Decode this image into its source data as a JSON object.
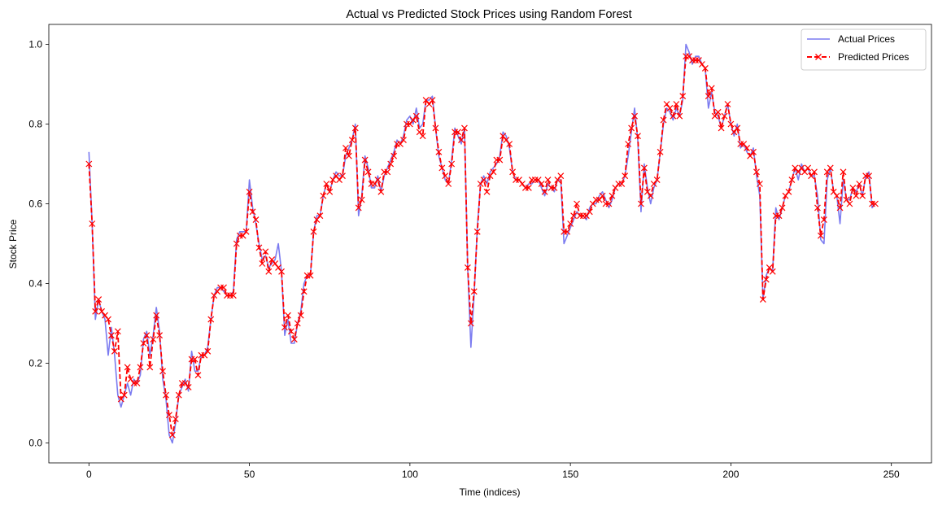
{
  "chart_data": {
    "type": "line",
    "title": "Actual vs Predicted Stock Prices using Random Forest",
    "xlabel": "Time (indices)",
    "ylabel": "Stock Price",
    "xlim": [
      -12.5,
      262.5
    ],
    "ylim": [
      -0.05,
      1.05
    ],
    "xticks": [
      0,
      50,
      100,
      150,
      200,
      250
    ],
    "yticks": [
      0.0,
      0.2,
      0.4,
      0.6,
      0.8,
      1.0
    ],
    "grid": false,
    "legend_position": "top-right",
    "series": [
      {
        "name": "Actual Prices",
        "color": "#7b7bf0",
        "style": "solid",
        "marker": "none",
        "values": [
          0.73,
          0.55,
          0.31,
          0.36,
          0.33,
          0.31,
          0.22,
          0.29,
          0.22,
          0.12,
          0.09,
          0.12,
          0.15,
          0.12,
          0.16,
          0.15,
          0.17,
          0.26,
          0.28,
          0.22,
          0.27,
          0.34,
          0.28,
          0.16,
          0.11,
          0.02,
          0.0,
          0.05,
          0.12,
          0.14,
          0.16,
          0.13,
          0.23,
          0.18,
          0.18,
          0.22,
          0.22,
          0.24,
          0.31,
          0.37,
          0.39,
          0.39,
          0.38,
          0.37,
          0.37,
          0.38,
          0.51,
          0.53,
          0.53,
          0.53,
          0.66,
          0.59,
          0.55,
          0.5,
          0.46,
          0.47,
          0.44,
          0.45,
          0.46,
          0.5,
          0.43,
          0.27,
          0.31,
          0.25,
          0.25,
          0.3,
          0.33,
          0.4,
          0.42,
          0.42,
          0.53,
          0.57,
          0.57,
          0.62,
          0.65,
          0.63,
          0.66,
          0.68,
          0.67,
          0.67,
          0.72,
          0.74,
          0.76,
          0.8,
          0.57,
          0.62,
          0.72,
          0.69,
          0.64,
          0.64,
          0.67,
          0.63,
          0.67,
          0.69,
          0.71,
          0.73,
          0.76,
          0.75,
          0.77,
          0.81,
          0.82,
          0.8,
          0.84,
          0.79,
          0.8,
          0.86,
          0.86,
          0.87,
          0.79,
          0.72,
          0.69,
          0.66,
          0.65,
          0.71,
          0.79,
          0.77,
          0.75,
          0.79,
          0.44,
          0.24,
          0.37,
          0.54,
          0.65,
          0.67,
          0.65,
          0.68,
          0.69,
          0.7,
          0.72,
          0.78,
          0.77,
          0.74,
          0.68,
          0.66,
          0.66,
          0.65,
          0.64,
          0.65,
          0.65,
          0.66,
          0.66,
          0.64,
          0.62,
          0.65,
          0.64,
          0.63,
          0.66,
          0.66,
          0.5,
          0.52,
          0.54,
          0.56,
          0.58,
          0.57,
          0.57,
          0.56,
          0.59,
          0.6,
          0.6,
          0.62,
          0.63,
          0.61,
          0.59,
          0.61,
          0.64,
          0.65,
          0.65,
          0.67,
          0.72,
          0.78,
          0.84,
          0.76,
          0.58,
          0.7,
          0.64,
          0.6,
          0.64,
          0.66,
          0.73,
          0.8,
          0.84,
          0.83,
          0.81,
          0.84,
          0.82,
          0.86,
          1.0,
          0.98,
          0.95,
          0.97,
          0.97,
          0.95,
          0.94,
          0.84,
          0.88,
          0.83,
          0.82,
          0.79,
          0.82,
          0.85,
          0.8,
          0.77,
          0.8,
          0.74,
          0.75,
          0.73,
          0.72,
          0.74,
          0.67,
          0.62,
          0.36,
          0.42,
          0.44,
          0.43,
          0.59,
          0.56,
          0.59,
          0.62,
          0.63,
          0.66,
          0.69,
          0.66,
          0.7,
          0.68,
          0.69,
          0.67,
          0.67,
          0.62,
          0.51,
          0.5,
          0.66,
          0.69,
          0.63,
          0.62,
          0.55,
          0.66,
          0.61,
          0.61,
          0.64,
          0.63,
          0.65,
          0.62,
          0.67,
          0.68,
          0.59,
          0.6
        ]
      },
      {
        "name": "Predicted Prices",
        "color": "#ff0000",
        "style": "dashed",
        "marker": "x",
        "values": [
          0.7,
          0.55,
          0.33,
          0.36,
          0.33,
          0.32,
          0.31,
          0.27,
          0.23,
          0.28,
          0.11,
          0.12,
          0.19,
          0.16,
          0.15,
          0.15,
          0.19,
          0.25,
          0.27,
          0.19,
          0.26,
          0.32,
          0.27,
          0.18,
          0.12,
          0.07,
          0.02,
          0.06,
          0.12,
          0.15,
          0.15,
          0.14,
          0.21,
          0.21,
          0.17,
          0.22,
          0.22,
          0.23,
          0.31,
          0.37,
          0.38,
          0.39,
          0.39,
          0.37,
          0.37,
          0.37,
          0.5,
          0.52,
          0.52,
          0.53,
          0.63,
          0.58,
          0.56,
          0.49,
          0.45,
          0.48,
          0.43,
          0.46,
          0.45,
          0.44,
          0.43,
          0.29,
          0.32,
          0.28,
          0.26,
          0.3,
          0.32,
          0.38,
          0.42,
          0.42,
          0.53,
          0.56,
          0.57,
          0.62,
          0.65,
          0.63,
          0.66,
          0.67,
          0.66,
          0.67,
          0.74,
          0.72,
          0.76,
          0.79,
          0.59,
          0.61,
          0.71,
          0.68,
          0.65,
          0.65,
          0.66,
          0.63,
          0.68,
          0.68,
          0.7,
          0.72,
          0.75,
          0.75,
          0.76,
          0.8,
          0.8,
          0.81,
          0.82,
          0.78,
          0.77,
          0.86,
          0.85,
          0.86,
          0.79,
          0.73,
          0.69,
          0.67,
          0.65,
          0.7,
          0.78,
          0.78,
          0.76,
          0.79,
          0.44,
          0.3,
          0.38,
          0.53,
          0.65,
          0.66,
          0.63,
          0.67,
          0.68,
          0.71,
          0.71,
          0.77,
          0.76,
          0.75,
          0.68,
          0.66,
          0.66,
          0.65,
          0.64,
          0.64,
          0.66,
          0.66,
          0.66,
          0.65,
          0.63,
          0.66,
          0.64,
          0.64,
          0.66,
          0.67,
          0.53,
          0.53,
          0.55,
          0.57,
          0.6,
          0.57,
          0.57,
          0.57,
          0.58,
          0.6,
          0.61,
          0.61,
          0.62,
          0.6,
          0.6,
          0.62,
          0.64,
          0.65,
          0.65,
          0.67,
          0.75,
          0.79,
          0.82,
          0.77,
          0.6,
          0.69,
          0.63,
          0.62,
          0.65,
          0.66,
          0.73,
          0.81,
          0.85,
          0.84,
          0.82,
          0.85,
          0.82,
          0.87,
          0.97,
          0.97,
          0.96,
          0.96,
          0.96,
          0.95,
          0.94,
          0.87,
          0.89,
          0.82,
          0.83,
          0.79,
          0.82,
          0.85,
          0.8,
          0.78,
          0.79,
          0.75,
          0.75,
          0.74,
          0.72,
          0.73,
          0.68,
          0.65,
          0.36,
          0.41,
          0.44,
          0.43,
          0.57,
          0.57,
          0.59,
          0.62,
          0.63,
          0.66,
          0.69,
          0.68,
          0.69,
          0.68,
          0.69,
          0.67,
          0.68,
          0.59,
          0.52,
          0.56,
          0.68,
          0.69,
          0.63,
          0.62,
          0.59,
          0.68,
          0.61,
          0.6,
          0.64,
          0.62,
          0.65,
          0.62,
          0.67,
          0.67,
          0.6,
          0.6
        ]
      }
    ]
  }
}
